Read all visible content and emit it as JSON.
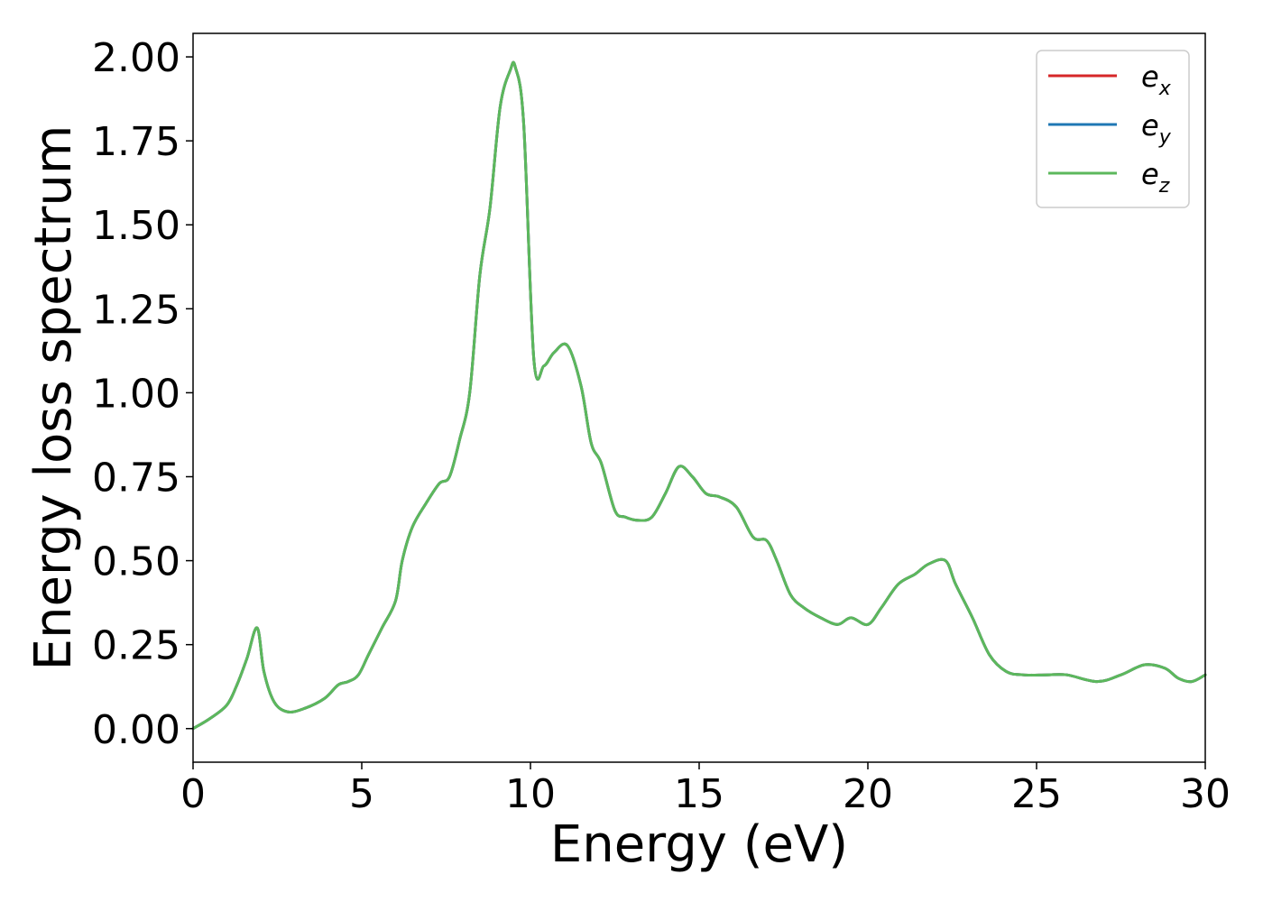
{
  "chart_data": {
    "type": "line",
    "title": "",
    "xlabel": "Energy (eV)",
    "ylabel": "Energy loss spectrum",
    "xlim": [
      0,
      30
    ],
    "ylim": [
      -0.1,
      2.07
    ],
    "xticks": [
      0,
      5,
      10,
      15,
      20,
      25,
      30
    ],
    "xtick_labels": [
      "0",
      "5",
      "10",
      "15",
      "20",
      "25",
      "30"
    ],
    "yticks": [
      0.0,
      0.25,
      0.5,
      0.75,
      1.0,
      1.25,
      1.5,
      1.75,
      2.0
    ],
    "ytick_labels": [
      "0.00",
      "0.25",
      "0.50",
      "0.75",
      "1.00",
      "1.25",
      "1.50",
      "1.75",
      "2.00"
    ],
    "grid": false,
    "legend": "top-right",
    "x": [
      0.0,
      0.5,
      1.0,
      1.3,
      1.6,
      1.9,
      2.1,
      2.4,
      2.8,
      3.3,
      3.9,
      4.3,
      4.6,
      4.9,
      5.2,
      5.6,
      6.0,
      6.2,
      6.5,
      6.9,
      7.3,
      7.6,
      7.9,
      8.2,
      8.5,
      8.8,
      9.1,
      9.4,
      9.55,
      9.8,
      10.1,
      10.4,
      10.7,
      11.1,
      11.5,
      11.8,
      12.1,
      12.5,
      12.8,
      13.2,
      13.6,
      14.0,
      14.4,
      14.8,
      15.2,
      15.6,
      16.1,
      16.6,
      17.0,
      17.3,
      17.7,
      18.1,
      18.6,
      19.1,
      19.5,
      20.0,
      20.4,
      20.9,
      21.4,
      21.8,
      22.3,
      22.6,
      23.1,
      23.6,
      24.1,
      24.6,
      25.3,
      25.9,
      26.8,
      27.5,
      28.2,
      28.8,
      29.2,
      29.6,
      30.0
    ],
    "series": [
      {
        "name": "e_x",
        "color": "#d62728",
        "values": [
          0.0,
          0.03,
          0.07,
          0.13,
          0.21,
          0.3,
          0.17,
          0.08,
          0.05,
          0.06,
          0.09,
          0.13,
          0.14,
          0.16,
          0.22,
          0.3,
          0.38,
          0.5,
          0.6,
          0.67,
          0.73,
          0.75,
          0.86,
          1.0,
          1.35,
          1.55,
          1.85,
          1.96,
          1.97,
          1.8,
          1.1,
          1.08,
          1.12,
          1.14,
          1.02,
          0.85,
          0.79,
          0.65,
          0.63,
          0.62,
          0.63,
          0.7,
          0.78,
          0.75,
          0.7,
          0.69,
          0.66,
          0.57,
          0.56,
          0.5,
          0.4,
          0.36,
          0.33,
          0.31,
          0.33,
          0.31,
          0.36,
          0.43,
          0.46,
          0.49,
          0.5,
          0.43,
          0.33,
          0.22,
          0.17,
          0.16,
          0.16,
          0.16,
          0.14,
          0.16,
          0.19,
          0.18,
          0.15,
          0.14,
          0.16
        ]
      },
      {
        "name": "e_y",
        "color": "#1f77b4",
        "values": [
          0.0,
          0.03,
          0.07,
          0.13,
          0.21,
          0.3,
          0.17,
          0.08,
          0.05,
          0.06,
          0.09,
          0.13,
          0.14,
          0.16,
          0.22,
          0.3,
          0.38,
          0.5,
          0.6,
          0.67,
          0.73,
          0.75,
          0.86,
          1.0,
          1.35,
          1.55,
          1.85,
          1.96,
          1.97,
          1.8,
          1.1,
          1.08,
          1.12,
          1.14,
          1.02,
          0.85,
          0.79,
          0.65,
          0.63,
          0.62,
          0.63,
          0.7,
          0.78,
          0.75,
          0.7,
          0.69,
          0.66,
          0.57,
          0.56,
          0.5,
          0.4,
          0.36,
          0.33,
          0.31,
          0.33,
          0.31,
          0.36,
          0.43,
          0.46,
          0.49,
          0.5,
          0.43,
          0.33,
          0.22,
          0.17,
          0.16,
          0.16,
          0.16,
          0.14,
          0.16,
          0.19,
          0.18,
          0.15,
          0.14,
          0.16
        ]
      },
      {
        "name": "e_z",
        "color": "#5cb85c",
        "values": [
          0.0,
          0.03,
          0.07,
          0.13,
          0.21,
          0.3,
          0.17,
          0.08,
          0.05,
          0.06,
          0.09,
          0.13,
          0.14,
          0.16,
          0.22,
          0.3,
          0.38,
          0.5,
          0.6,
          0.67,
          0.73,
          0.75,
          0.86,
          1.0,
          1.35,
          1.55,
          1.85,
          1.96,
          1.97,
          1.8,
          1.1,
          1.08,
          1.12,
          1.14,
          1.02,
          0.85,
          0.79,
          0.65,
          0.63,
          0.62,
          0.63,
          0.7,
          0.78,
          0.75,
          0.7,
          0.69,
          0.66,
          0.57,
          0.56,
          0.5,
          0.4,
          0.36,
          0.33,
          0.31,
          0.33,
          0.31,
          0.36,
          0.43,
          0.46,
          0.49,
          0.5,
          0.43,
          0.33,
          0.22,
          0.17,
          0.16,
          0.16,
          0.16,
          0.14,
          0.16,
          0.19,
          0.18,
          0.15,
          0.14,
          0.16
        ]
      }
    ],
    "legend_entries": [
      {
        "base": "e",
        "sub": "x",
        "color": "#d62728"
      },
      {
        "base": "e",
        "sub": "y",
        "color": "#1f77b4"
      },
      {
        "base": "e",
        "sub": "z",
        "color": "#5cb85c"
      }
    ]
  }
}
